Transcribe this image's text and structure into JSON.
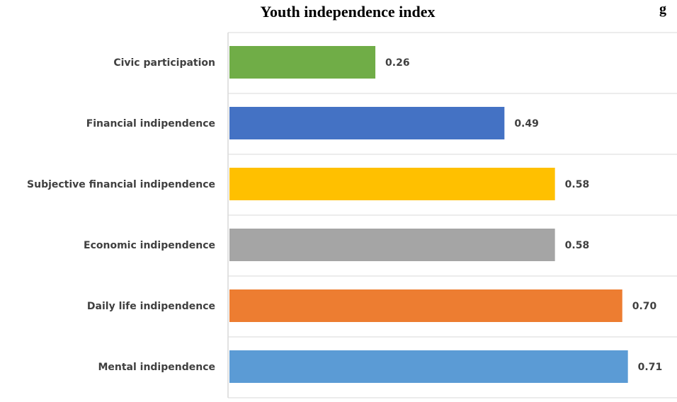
{
  "corner_fragment": "g",
  "chart_data": {
    "type": "bar",
    "orientation": "horizontal",
    "title": "Youth independence index",
    "categories": [
      "Civic participation",
      "Financial indipendence",
      "Subjective financial indipendence",
      "Economic indipendence",
      "Daily life indipendence",
      "Mental indipendence"
    ],
    "values": [
      0.26,
      0.49,
      0.58,
      0.58,
      0.7,
      0.71
    ],
    "value_labels": [
      "0.26",
      "0.49",
      "0.58",
      "0.58",
      "0.70",
      "0.71"
    ],
    "colors": [
      "#70AD47",
      "#4472C4",
      "#FFC000",
      "#A5A5A5",
      "#ED7D31",
      "#5B9BD5"
    ],
    "xlim": [
      0,
      0.8
    ],
    "grid": true,
    "legend": "none"
  }
}
